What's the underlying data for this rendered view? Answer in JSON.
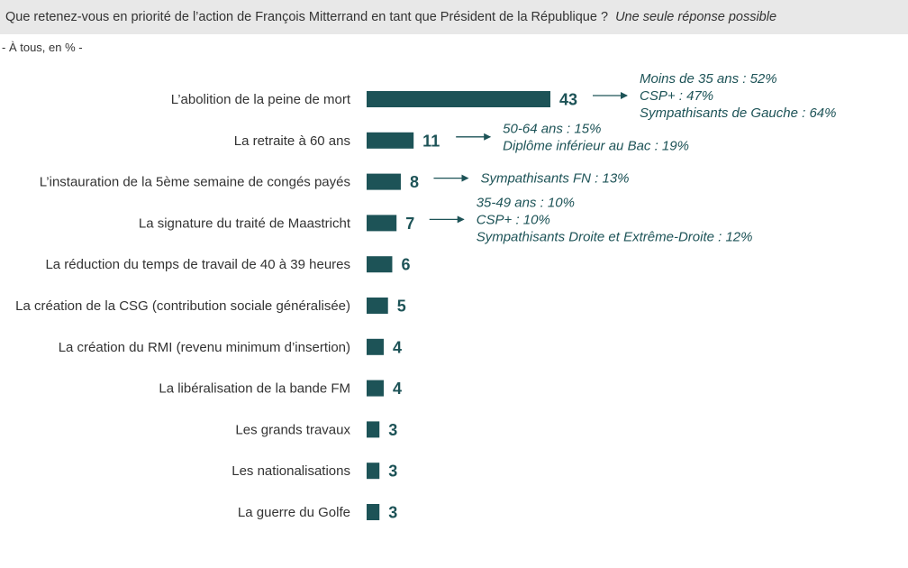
{
  "header": {
    "question": "Que retenez-vous en priorité de l’action de François Mitterrand en tant que Président de la République ?",
    "note": "Une seule réponse possible"
  },
  "subtitle": "- À tous, en % -",
  "colors": {
    "bar": "#1d5357",
    "annotation": "#1d5357",
    "header_bg": "#e8e8e8"
  },
  "chart_data": {
    "type": "bar",
    "orientation": "horizontal",
    "categories": [
      "L’abolition de la peine de mort",
      "La retraite à 60 ans",
      "L’instauration de la 5ème semaine de congés payés",
      "La signature du traité de Maastricht",
      "La réduction du temps de travail de 40 à 39 heures",
      "La création de la CSG (contribution sociale généralisée)",
      "La création du RMI (revenu minimum d’insertion)",
      "La libéralisation de la bande FM",
      "Les grands travaux",
      "Les nationalisations",
      "La guerre du Golfe"
    ],
    "values": [
      43,
      11,
      8,
      7,
      6,
      5,
      4,
      4,
      3,
      3,
      3
    ],
    "data_labels": [
      "43",
      "11",
      "8",
      "7",
      "6",
      "5",
      "4",
      "4",
      "3",
      "3",
      "3"
    ],
    "xlim": [
      0,
      43
    ],
    "grid": false,
    "annotations": [
      {
        "category_index": 0,
        "lines": [
          "Moins de 35 ans : 52%",
          "CSP+ : 47%",
          "Sympathisants de Gauche : 64%"
        ]
      },
      {
        "category_index": 1,
        "lines": [
          "50-64 ans : 15%",
          "Diplôme inférieur au Bac : 19%"
        ]
      },
      {
        "category_index": 2,
        "lines": [
          "Sympathisants FN : 13%"
        ]
      },
      {
        "category_index": 3,
        "lines": [
          "35-49 ans : 10%",
          "CSP+ : 10%",
          "Sympathisants Droite et Extrême-Droite : 12%"
        ]
      }
    ]
  }
}
